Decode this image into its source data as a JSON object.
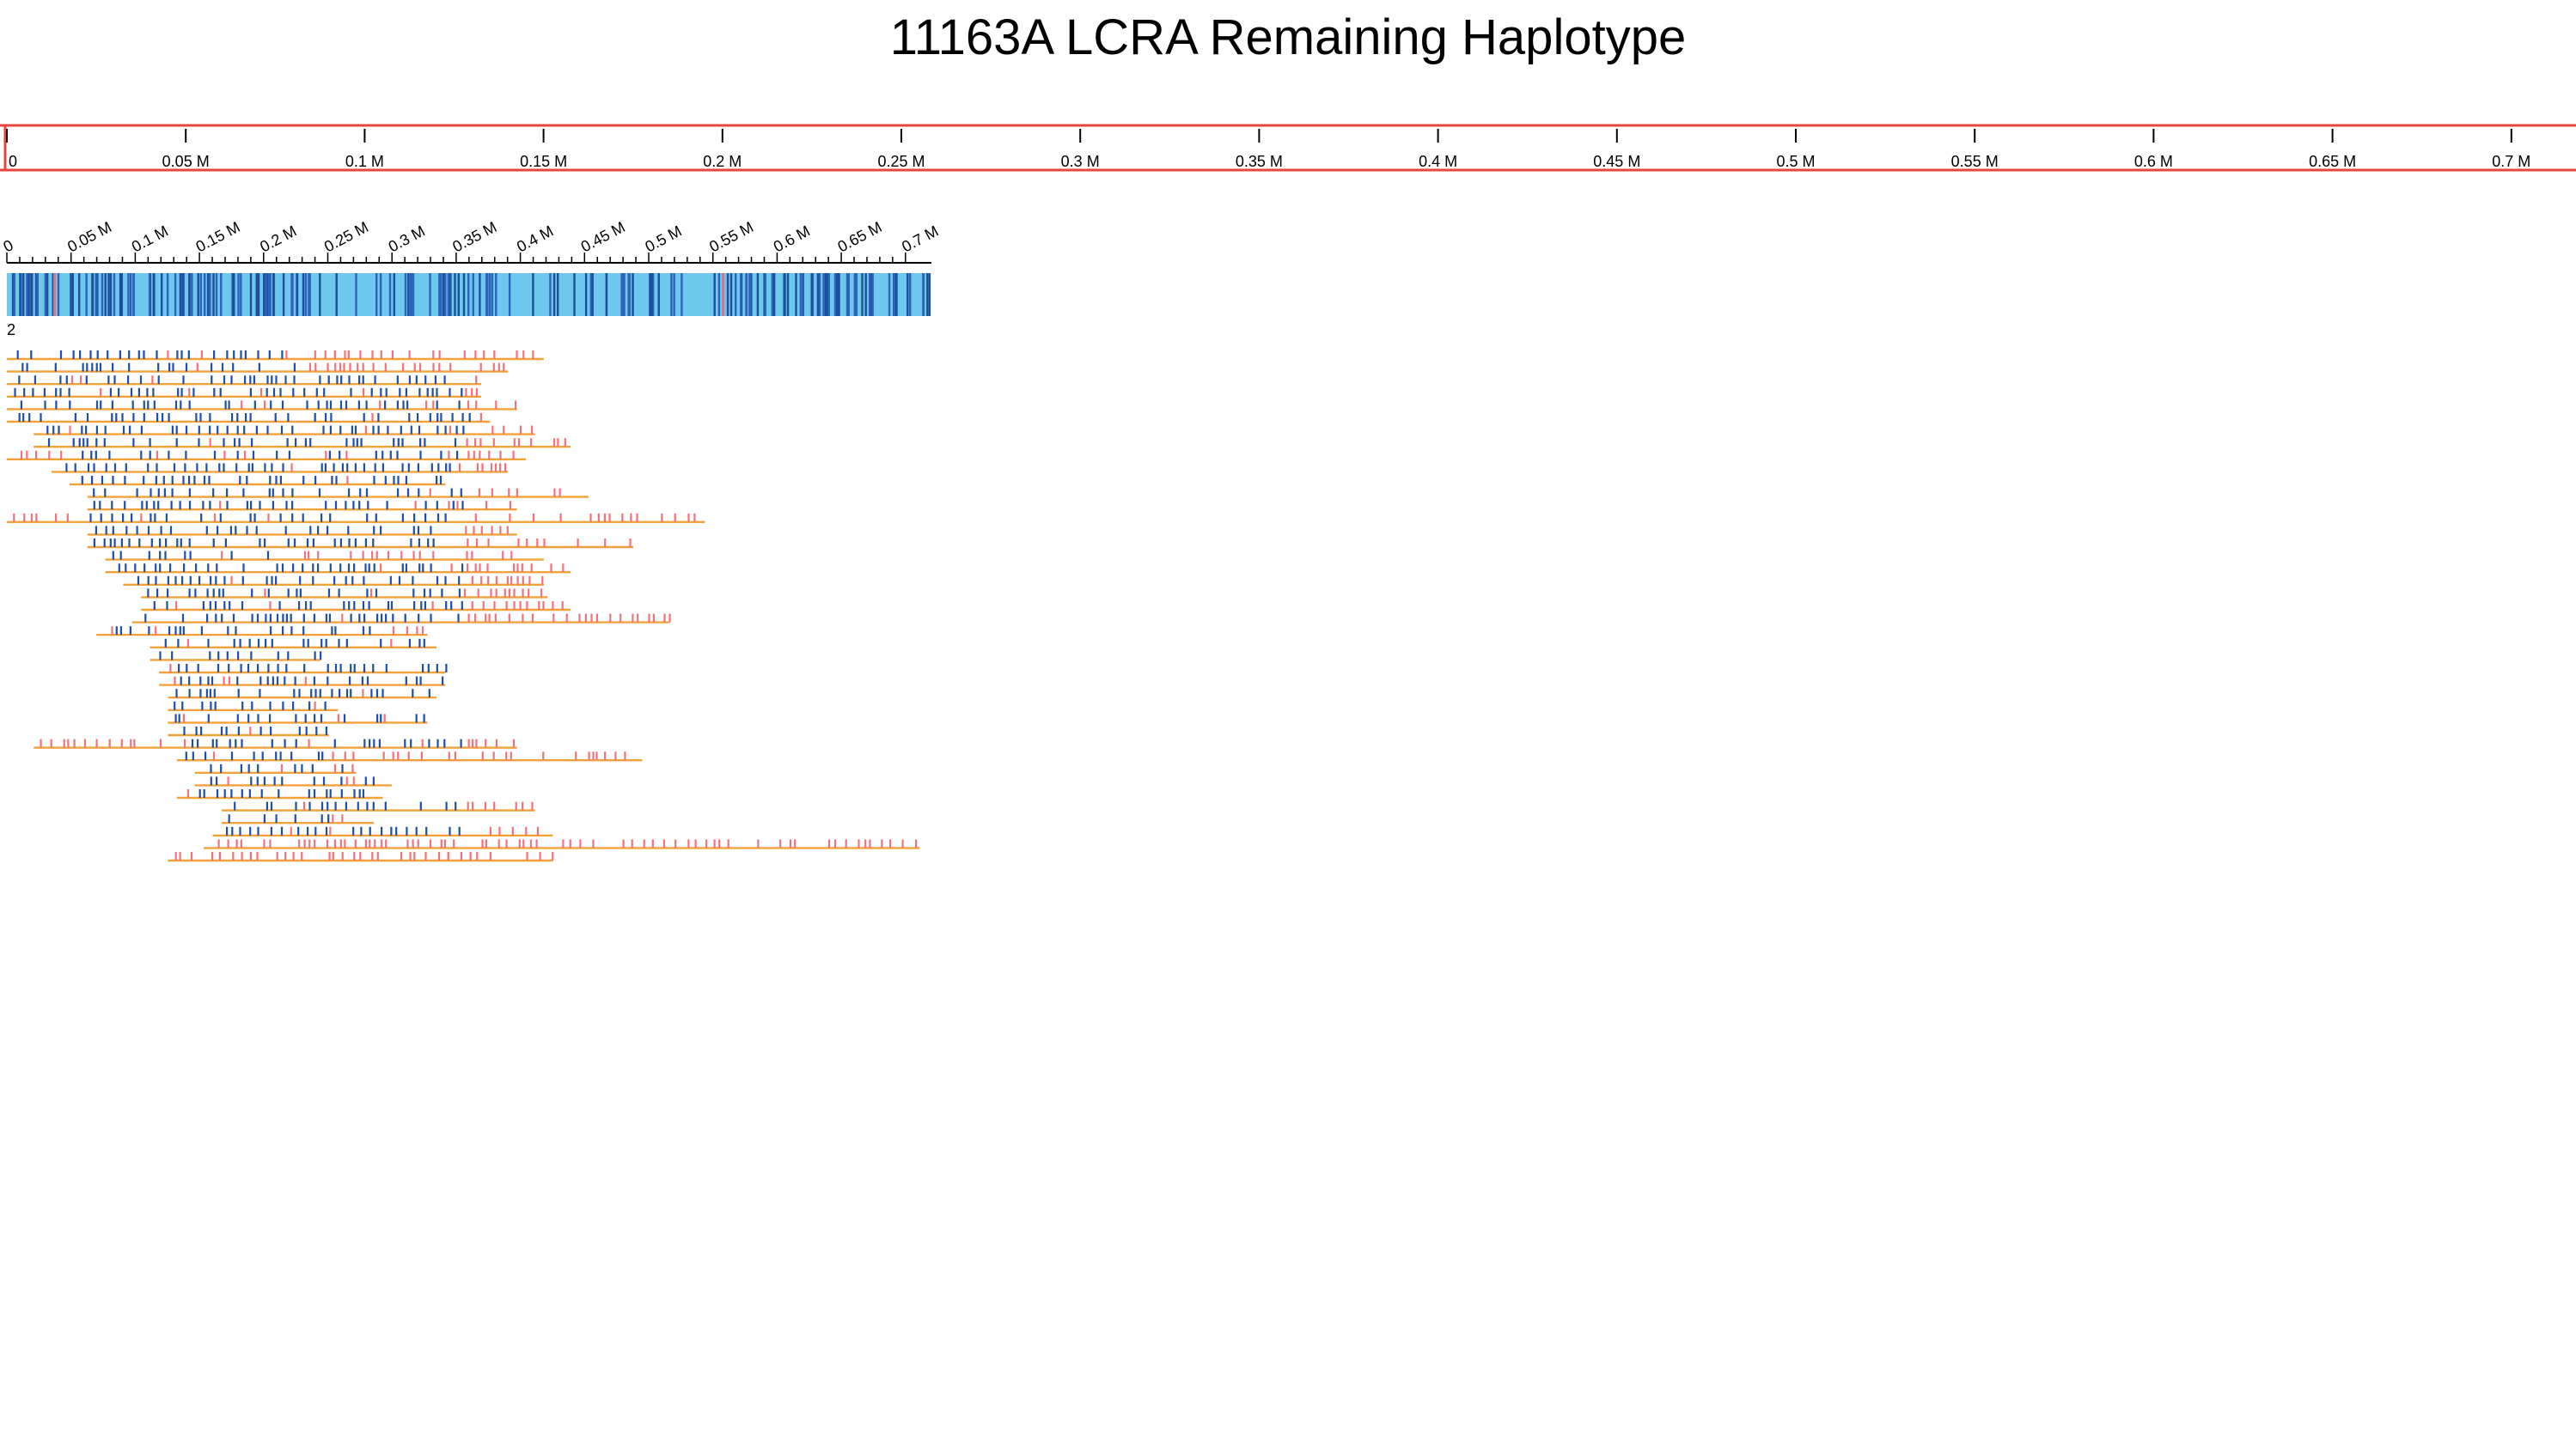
{
  "title": "11163A LCRA Remaining Haplotype",
  "colors": {
    "ruler": "#e8453c",
    "overview_bar": "#6ec8ee",
    "snp_blue": "#1f4fa8",
    "snp_red": "#f4727a",
    "read_line": "#f3a23a"
  },
  "top_ruler": {
    "labels": [
      "0",
      "0.05 M",
      "0.1 M",
      "0.15 M",
      "0.2 M",
      "0.25 M",
      "0.3 M",
      "0.35 M",
      "0.4 M",
      "0.45 M",
      "0.5 M",
      "0.55 M",
      "0.6 M",
      "0.65 M",
      "0.7 M"
    ]
  },
  "overview_axis": {
    "labels": [
      "0",
      "0.05 M",
      "0.1 M",
      "0.15 M",
      "0.2 M",
      "0.25 M",
      "0.3 M",
      "0.35 M",
      "0.4 M",
      "0.45 M",
      "0.5 M",
      "0.55 M",
      "0.6 M",
      "0.65 M",
      "0.7 M"
    ]
  },
  "track_count_label": "2",
  "reads": [
    {
      "start": 0.0,
      "end": 0.3,
      "red_from": 0.165
    },
    {
      "start": 0.0,
      "end": 0.28,
      "red_from": 0.165
    },
    {
      "start": 0.0,
      "end": 0.265,
      "red_from": 0.255
    },
    {
      "start": 0.0,
      "end": 0.265,
      "red_from": 0.255
    },
    {
      "start": 0.0,
      "end": 0.285,
      "red_from": 0.255
    },
    {
      "start": 0.0,
      "end": 0.27,
      "red_from": 0.26
    },
    {
      "start": 0.015,
      "end": 0.295,
      "red_from": 0.255
    },
    {
      "start": 0.015,
      "end": 0.315,
      "red_from": 0.255
    },
    {
      "start": 0.0,
      "end": 0.29,
      "red_from": 0.255,
      "red_to": 0.03
    },
    {
      "start": 0.025,
      "end": 0.28,
      "red_from": 0.255
    },
    {
      "start": 0.035,
      "end": 0.245,
      "red_from": 0.255
    },
    {
      "start": 0.045,
      "end": 0.325,
      "red_from": 0.255
    },
    {
      "start": 0.045,
      "end": 0.285,
      "red_from": 0.255
    },
    {
      "start": 0.0,
      "end": 0.39,
      "red_from": 0.255,
      "red_to": 0.045
    },
    {
      "start": 0.045,
      "end": 0.285,
      "red_from": 0.255
    },
    {
      "start": 0.045,
      "end": 0.35,
      "red_from": 0.255
    },
    {
      "start": 0.055,
      "end": 0.3,
      "red_from": 0.165
    },
    {
      "start": 0.055,
      "end": 0.315,
      "red_from": 0.255
    },
    {
      "start": 0.065,
      "end": 0.3,
      "red_from": 0.255
    },
    {
      "start": 0.075,
      "end": 0.302,
      "red_from": 0.255
    },
    {
      "start": 0.075,
      "end": 0.315,
      "red_from": 0.255
    },
    {
      "start": 0.07,
      "end": 0.37,
      "red_from": 0.255
    },
    {
      "start": 0.05,
      "end": 0.235,
      "red_from": 0.205,
      "red_to": 0.06
    },
    {
      "start": 0.08,
      "end": 0.24,
      "red_from": 0.255
    },
    {
      "start": 0.08,
      "end": 0.175,
      "red_from": 0.255
    },
    {
      "start": 0.085,
      "end": 0.245,
      "red_from": 0.255
    },
    {
      "start": 0.085,
      "end": 0.245,
      "red_from": 0.255
    },
    {
      "start": 0.09,
      "end": 0.24,
      "red_from": 0.255
    },
    {
      "start": 0.09,
      "end": 0.185,
      "red_from": 0.255
    },
    {
      "start": 0.09,
      "end": 0.235,
      "red_from": 0.255
    },
    {
      "start": 0.09,
      "end": 0.18,
      "red_from": 0.255
    },
    {
      "start": 0.015,
      "end": 0.285,
      "red_from": 0.255,
      "red_to": 0.1
    },
    {
      "start": 0.095,
      "end": 0.355,
      "red_from": 0.18
    },
    {
      "start": 0.105,
      "end": 0.195,
      "red_from": 0.255
    },
    {
      "start": 0.105,
      "end": 0.215,
      "red_from": 0.255
    },
    {
      "start": 0.095,
      "end": 0.21,
      "red_from": 0.255
    },
    {
      "start": 0.12,
      "end": 0.295,
      "red_from": 0.255
    },
    {
      "start": 0.12,
      "end": 0.205,
      "red_from": 0.18
    },
    {
      "start": 0.115,
      "end": 0.305,
      "red_from": 0.255
    },
    {
      "start": 0.11,
      "end": 0.51,
      "red_from": 0.04
    },
    {
      "start": 0.09,
      "end": 0.305,
      "red_from": 0.03
    }
  ]
}
